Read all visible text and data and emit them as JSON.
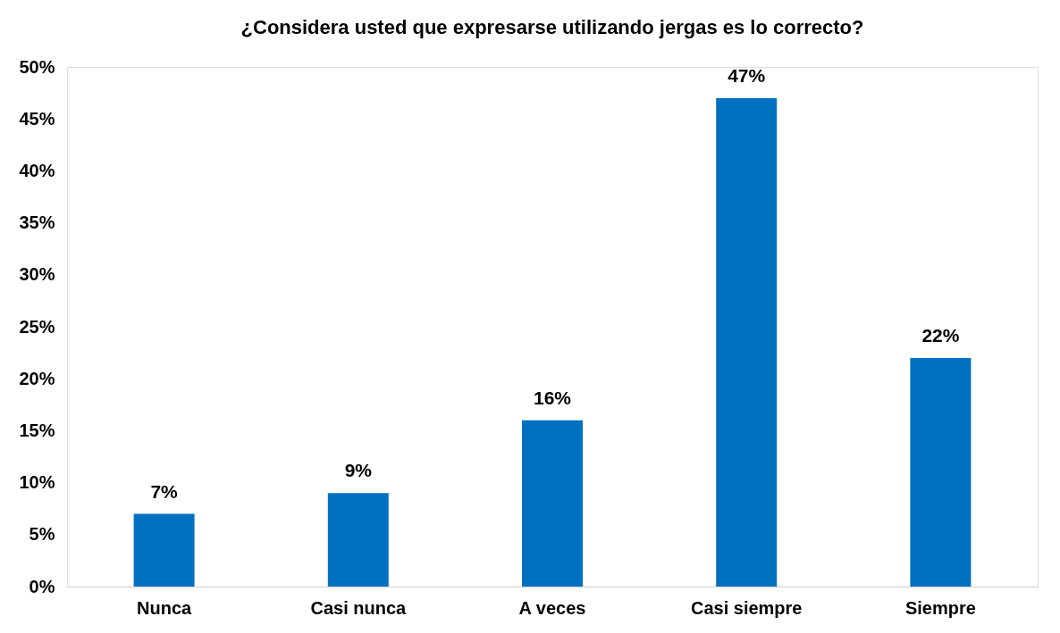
{
  "chart_data": {
    "type": "bar",
    "title": "¿Considera usted que expresarse utilizando jergas es lo correcto?",
    "categories": [
      "Nunca",
      "Casi nunca",
      "A veces",
      "Casi siempre",
      "Siempre"
    ],
    "values": [
      7,
      9,
      16,
      47,
      22
    ],
    "color": "#0070c0",
    "ylim": [
      0,
      50
    ],
    "yticks": [
      {
        "value": 0,
        "label": "0%"
      },
      {
        "value": 5,
        "label": "5%"
      },
      {
        "value": 10,
        "label": "10%"
      },
      {
        "value": 15,
        "label": "15%"
      },
      {
        "value": 20,
        "label": "20%"
      },
      {
        "value": 25,
        "label": "25%"
      },
      {
        "value": 30,
        "label": "30%"
      },
      {
        "value": 35,
        "label": "35%"
      },
      {
        "value": 40,
        "label": "40%"
      },
      {
        "value": 45,
        "label": "45%"
      },
      {
        "value": 50,
        "label": "50%"
      }
    ],
    "value_labels": [
      "7%",
      "9%",
      "16%",
      "47%",
      "22%"
    ],
    "grid": false
  }
}
